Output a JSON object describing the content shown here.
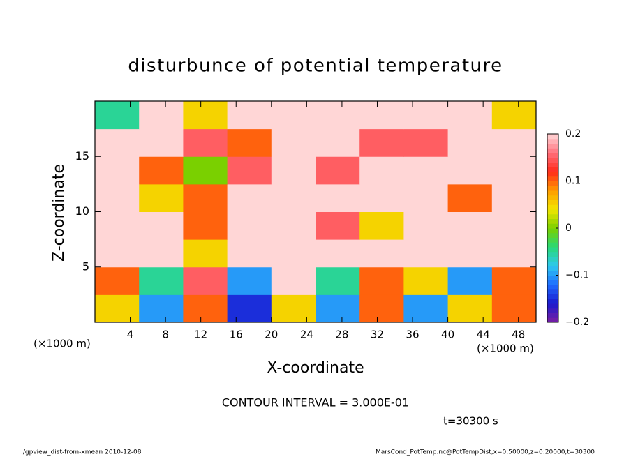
{
  "chart_data": {
    "type": "heatmap",
    "title": "disturbunce of potential temperature",
    "xlabel": "X-coordinate",
    "ylabel": "Z-coordinate",
    "xunit_left": "(×1000 m)",
    "xunit_right": "(×1000 m)",
    "contour_note": "CONTOUR INTERVAL = 3.000E-01",
    "time_label": "t=30300 s",
    "footer_left": "./gpview_dist-from-xmean  2010-12-08",
    "footer_right": "MarsCond_PotTemp.nc@PotTempDist,x=0:50000,z=0:20000,t=30300",
    "xbins": [
      0,
      5,
      10,
      15,
      20,
      25,
      30,
      35,
      40,
      45,
      50
    ],
    "zbins": [
      0,
      2.5,
      5,
      7.5,
      10,
      12.5,
      15,
      17.5,
      20
    ],
    "values": [
      [
        0.05,
        -0.1,
        0.1,
        -0.15,
        0.05,
        -0.1,
        0.1,
        -0.1,
        0.05,
        0.1
      ],
      [
        0.1,
        -0.05,
        0.15,
        -0.1,
        0.2,
        -0.05,
        0.1,
        0.05,
        -0.1,
        0.1
      ],
      [
        0.2,
        0.2,
        0.05,
        0.2,
        0.2,
        0.2,
        0.2,
        0.2,
        0.2,
        0.2
      ],
      [
        0.2,
        0.2,
        0.1,
        0.2,
        0.2,
        0.15,
        0.05,
        0.2,
        0.2,
        0.2
      ],
      [
        0.2,
        0.05,
        0.1,
        0.2,
        0.2,
        0.2,
        0.2,
        0.2,
        0.1,
        0.2
      ],
      [
        0.2,
        0.1,
        0,
        0.15,
        0.2,
        0.15,
        0.2,
        0.2,
        0.2,
        0.2
      ],
      [
        0.2,
        0.2,
        0.15,
        0.1,
        0.2,
        0.2,
        0.15,
        0.15,
        0.2,
        0.2
      ],
      [
        -0.05,
        0.2,
        0.05,
        0.2,
        0.2,
        0.2,
        0.2,
        0.2,
        0.2,
        0.05
      ]
    ],
    "xlim": [
      0,
      50
    ],
    "xticks": [
      4,
      8,
      12,
      16,
      20,
      24,
      28,
      32,
      36,
      40,
      44,
      48
    ],
    "ylim": [
      0,
      20
    ],
    "yticks": [
      5,
      10,
      15
    ],
    "clim": [
      -0.2,
      0.2
    ],
    "cticks": [
      {
        "value": -0.2,
        "label": "−0.2"
      },
      {
        "value": -0.1,
        "label": "−0.1"
      },
      0,
      0.1,
      0.2
    ],
    "colormap": [
      "#7b1fa2",
      "#1a1acd",
      "#1e6bff",
      "#2ec8f0",
      "#28d878",
      "#7ad000",
      "#f2e600",
      "#ff9a00",
      "#ff2a1a",
      "#ff6f7a",
      "#ffd6d6"
    ]
  }
}
